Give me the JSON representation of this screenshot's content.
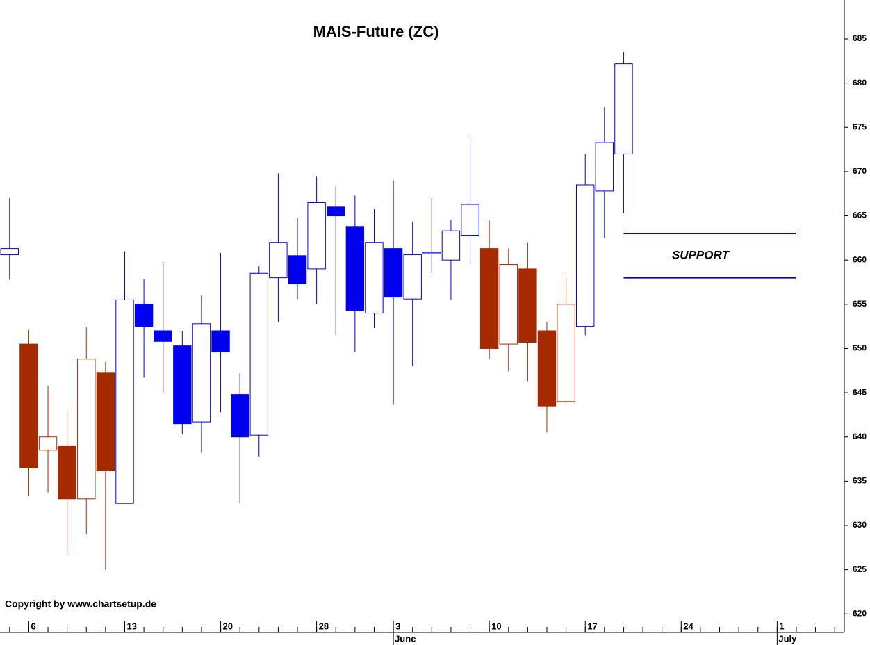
{
  "chart_data": {
    "type": "candlestick",
    "title": "MAIS-Future  (ZC)",
    "footnote": "Copyright by www.chartsetup.de",
    "x": [
      0,
      1,
      2,
      3,
      4,
      5,
      6,
      7,
      8,
      9,
      10,
      11,
      12,
      13,
      14,
      15,
      16,
      17,
      18,
      19,
      20,
      21,
      22,
      23,
      24,
      25,
      26,
      27,
      28,
      29,
      30,
      31,
      32
    ],
    "open": [
      660.6,
      650.5,
      638.5,
      639,
      633,
      647.3,
      632.5,
      655,
      652,
      650.3,
      641.7,
      652,
      644.8,
      640.2,
      658,
      660.5,
      659,
      666,
      663.8,
      654,
      661.3,
      655.6,
      660.8,
      660,
      662.8,
      661.3,
      650.5,
      659,
      652,
      644,
      652.5,
      667.8,
      672
    ],
    "high": [
      667,
      652.1,
      645.8,
      643,
      652.4,
      648.5,
      661,
      657.8,
      659.8,
      652,
      656,
      660.8,
      647.2,
      659.3,
      669.8,
      664.8,
      669.5,
      668.3,
      667.3,
      665.8,
      669,
      664.3,
      667,
      664.5,
      674,
      664.5,
      661.3,
      662,
      653,
      658,
      672,
      677.3,
      683.5
    ],
    "low": [
      657.8,
      633.3,
      633.7,
      626.6,
      629,
      625,
      632.5,
      646.7,
      645,
      640.3,
      638.2,
      642.8,
      632.5,
      637.8,
      653,
      655.6,
      655,
      651.5,
      649.6,
      652.3,
      643.7,
      648,
      658.5,
      655.5,
      659.5,
      648.8,
      647.4,
      646.3,
      640.5,
      643.7,
      651.5,
      662.5,
      665.3
    ],
    "close": [
      661.3,
      636.5,
      640,
      633,
      648.8,
      636.2,
      655.5,
      652.5,
      650.8,
      641.5,
      652.8,
      649.6,
      640,
      658.5,
      662,
      657.3,
      666.5,
      665,
      654.3,
      662,
      655.8,
      660.6,
      660.9,
      663.3,
      666.3,
      650,
      659.5,
      650.7,
      643.5,
      655,
      668.5,
      673.3,
      682.2
    ],
    "colors": [
      "#0000ee",
      "#a52a00",
      "#a52a00",
      "#a52a00",
      "#a52a00",
      "#a52a00",
      "#0000ee",
      "#0000ee",
      "#0000ee",
      "#0000ee",
      "#0000ee",
      "#0000ee",
      "#0000ee",
      "#0000ee",
      "#0000ee",
      "#0000ee",
      "#0000ee",
      "#0000ee",
      "#0000ee",
      "#0000ee",
      "#0000ee",
      "#0000ee",
      "#0000ee",
      "#0000ee",
      "#0000ee",
      "#a52a00",
      "#a52a00",
      "#a52a00",
      "#a52a00",
      "#a52a00",
      "#0000ee",
      "#0000ee",
      "#0000ee"
    ],
    "xlim": [
      -0.5,
      43.5
    ],
    "xticks": [
      {
        "value": 1,
        "label": "6"
      },
      {
        "value": 6,
        "label": "13"
      },
      {
        "value": 11,
        "label": "20"
      },
      {
        "value": 16,
        "label": "28"
      },
      {
        "value": 20,
        "label": "3"
      },
      {
        "value": 25,
        "label": "10"
      },
      {
        "value": 30,
        "label": "17"
      },
      {
        "value": 35,
        "label": "24"
      },
      {
        "value": 40,
        "label": "1"
      }
    ],
    "months": [
      {
        "value": 20,
        "label": "June"
      },
      {
        "value": 40,
        "label": "July"
      }
    ],
    "ylim": [
      617.9,
      689.4
    ],
    "yticks": [
      620,
      625,
      630,
      635,
      640,
      645,
      650,
      655,
      660,
      665,
      670,
      675,
      680,
      685
    ],
    "hlines": [
      {
        "value": 663,
        "x": [
          32,
          41
        ],
        "color": "#0000cc"
      },
      {
        "value": 658,
        "x": [
          32,
          41
        ],
        "color": "#0000cc"
      }
    ],
    "annotation": {
      "text": "SUPPORT",
      "x": 36.0,
      "y": 660.5
    }
  }
}
